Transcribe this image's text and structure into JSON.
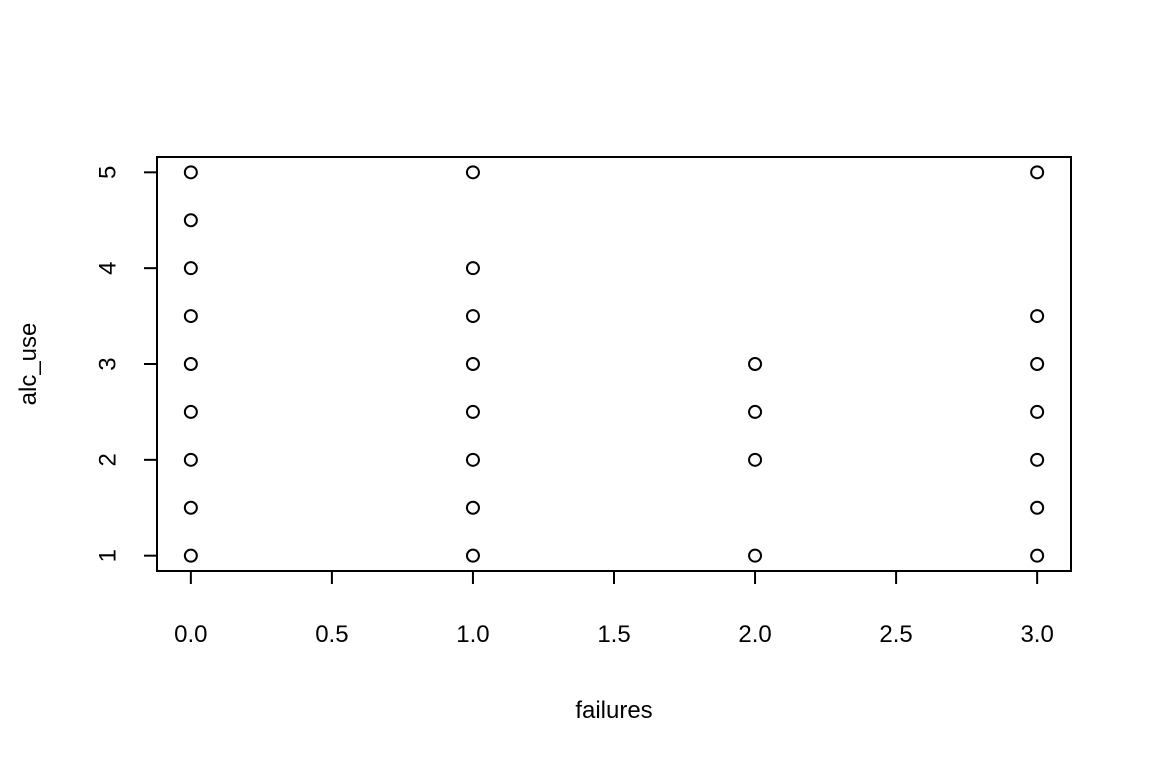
{
  "chart_data": {
    "type": "scatter",
    "title": "",
    "xlabel": "failures",
    "ylabel": "alc_use",
    "xlim": [
      -0.12,
      3.12
    ],
    "ylim": [
      0.84,
      5.16
    ],
    "x_ticks": [
      0.0,
      0.5,
      1.0,
      1.5,
      2.0,
      2.5,
      3.0
    ],
    "x_tick_labels": [
      "0.0",
      "0.5",
      "1.0",
      "1.5",
      "2.0",
      "2.5",
      "3.0"
    ],
    "y_ticks": [
      1,
      2,
      3,
      4,
      5
    ],
    "y_tick_labels": [
      "1",
      "2",
      "3",
      "4",
      "5"
    ],
    "grid": false,
    "legend": "none",
    "marker": "open-circle",
    "colors": {
      "points": "#000000",
      "axes": "#000000",
      "background": "#ffffff"
    },
    "points": [
      {
        "x": 0,
        "y": 5.0
      },
      {
        "x": 0,
        "y": 4.5
      },
      {
        "x": 0,
        "y": 4.0
      },
      {
        "x": 0,
        "y": 3.5
      },
      {
        "x": 0,
        "y": 3.0
      },
      {
        "x": 0,
        "y": 2.5
      },
      {
        "x": 0,
        "y": 2.0
      },
      {
        "x": 0,
        "y": 1.5
      },
      {
        "x": 0,
        "y": 1.0
      },
      {
        "x": 1,
        "y": 5.0
      },
      {
        "x": 1,
        "y": 4.0
      },
      {
        "x": 1,
        "y": 3.5
      },
      {
        "x": 1,
        "y": 3.0
      },
      {
        "x": 1,
        "y": 2.5
      },
      {
        "x": 1,
        "y": 2.0
      },
      {
        "x": 1,
        "y": 1.5
      },
      {
        "x": 1,
        "y": 1.0
      },
      {
        "x": 2,
        "y": 3.0
      },
      {
        "x": 2,
        "y": 2.5
      },
      {
        "x": 2,
        "y": 2.0
      },
      {
        "x": 2,
        "y": 1.0
      },
      {
        "x": 3,
        "y": 5.0
      },
      {
        "x": 3,
        "y": 3.5
      },
      {
        "x": 3,
        "y": 3.0
      },
      {
        "x": 3,
        "y": 2.5
      },
      {
        "x": 3,
        "y": 2.0
      },
      {
        "x": 3,
        "y": 1.5
      },
      {
        "x": 3,
        "y": 1.0
      }
    ]
  }
}
